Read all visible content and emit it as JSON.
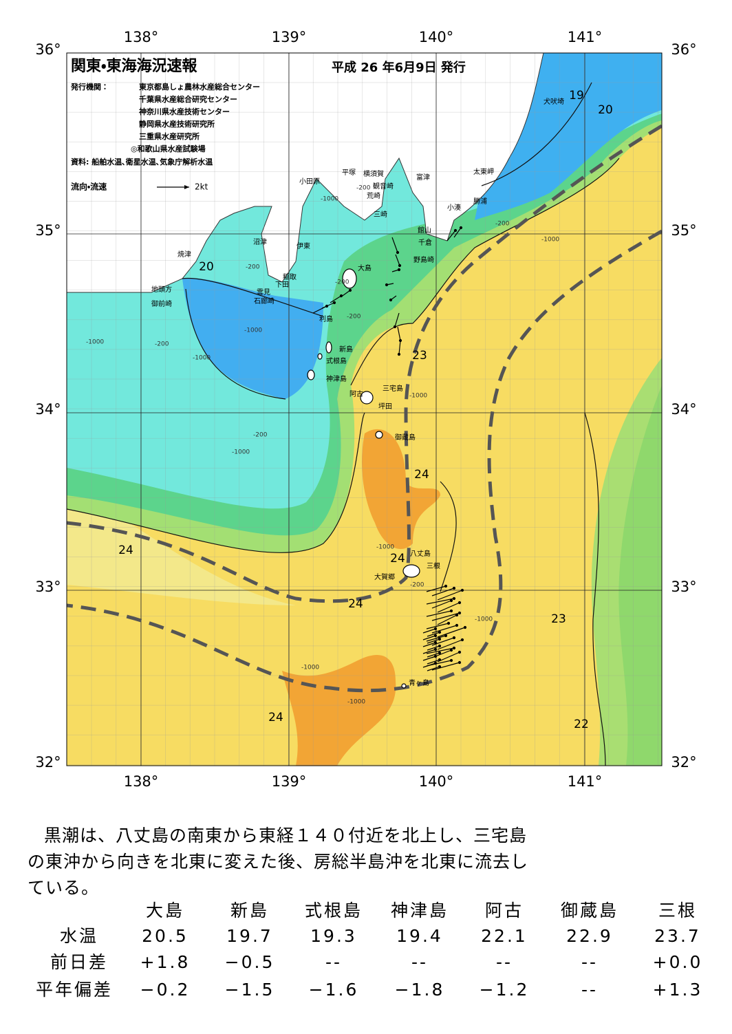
{
  "header": {
    "title": "関東・東海海況速報",
    "date": "平成 26 年6月9日 発行",
    "issuer_label": "発行機関：",
    "issuers": [
      "東京都島しょ農林水産総合センター",
      "千葉県水産総合研究センター",
      "神奈川県水産技術センター",
      "静岡県水産技術研究所",
      "三重県水産研究所",
      "◎和歌山県水産試験場"
    ],
    "sources": "資料: 船舶水温､衛星水温､気象庁解析水温",
    "legend_label": "流向・流速",
    "legend_scale": "2kt"
  },
  "map": {
    "lon_labels": [
      "138°",
      "139°",
      "140°",
      "141°"
    ],
    "lat_labels": [
      "36°",
      "35°",
      "34°",
      "33°",
      "32°"
    ],
    "places": [
      "犬吠埼",
      "太東岬",
      "勝浦",
      "小湊",
      "富津",
      "横須賀",
      "観音崎",
      "平塚",
      "小田原",
      "荒崎",
      "三崎",
      "館山",
      "千倉",
      "野島崎",
      "大島",
      "沼津",
      "伊東",
      "稲取",
      "下田",
      "焼津",
      "雲見",
      "石廊崎",
      "地頭方",
      "御前崎",
      "利島",
      "新島",
      "式根島",
      "神津島",
      "三宅島",
      "阿古",
      "坪田",
      "御蔵島",
      "八丈島",
      "三根",
      "大賀郷",
      "青ヶ島"
    ],
    "isotherm_labels": [
      19,
      20,
      20,
      23,
      24,
      24,
      24,
      24,
      23,
      24,
      22
    ],
    "depth_labels": [
      -200,
      -1000,
      -200,
      -1000,
      -200,
      -200,
      -1000,
      -200,
      -1000,
      -200,
      -1000,
      -1000,
      -1000,
      -1000,
      -1000,
      -1000,
      -200,
      -1000,
      -200
    ]
  },
  "summary": {
    "lines": [
      "黒潮は、八丈島の南東から東経１４０付近を北上し、三宅島",
      "の東沖から向きを北東に変えた後、房総半島沖を北東に流去し",
      "ている。"
    ]
  },
  "table": {
    "columns": [
      "大島",
      "新島",
      "式根島",
      "神津島",
      "阿古",
      "御蔵島",
      "三根"
    ],
    "rows": [
      {
        "label": "水温",
        "cells": [
          "20.5",
          "19.7",
          "19.3",
          "19.4",
          "22.1",
          "22.9",
          "23.7"
        ]
      },
      {
        "label": "前日差",
        "cells": [
          "+1.8",
          "−0.5",
          "--",
          "--",
          "--",
          "--",
          "+0.0"
        ]
      },
      {
        "label": "平年偏差",
        "cells": [
          "−0.2",
          "−1.5",
          "−1.6",
          "−1.8",
          "−1.2",
          "--",
          "+1.3"
        ]
      }
    ]
  }
}
